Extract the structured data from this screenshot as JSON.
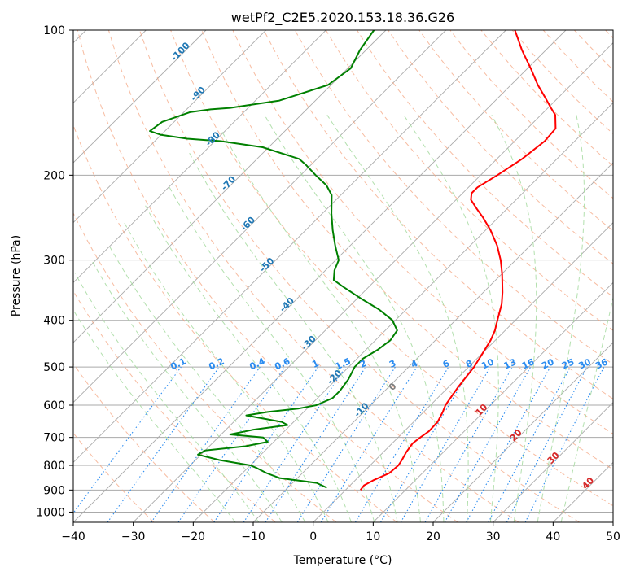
{
  "chart_data": {
    "type": "line",
    "title": "wetPf2_C2E5.2020.153.18.36.G26",
    "xlabel": "Temperature (°C)",
    "ylabel": "Pressure (hPa)",
    "xlim": [
      -40,
      50
    ],
    "ylim": [
      1050,
      100
    ],
    "y_scale": "log",
    "skew_deg": 45,
    "x_ticks": [
      -40,
      -30,
      -20,
      -10,
      0,
      10,
      20,
      30,
      40,
      50
    ],
    "y_ticks": [
      100,
      200,
      300,
      400,
      500,
      600,
      700,
      800,
      900,
      1000
    ],
    "grid": true,
    "colors": {
      "temperature": "#ff0000",
      "dewpoint": "#008000",
      "isotherm": "#aaaaaa",
      "dry_adiabat": "#f4a582",
      "moist_adiabat": "#a6dba0",
      "mixing_ratio": "#2b8cf0",
      "theta_label": "#1f77b4",
      "red_label": "#d62728"
    },
    "series": [
      {
        "name": "Temperature",
        "points": [
          [
            900,
            2.5
          ],
          [
            880,
            2.3
          ],
          [
            860,
            3.0
          ],
          [
            850,
            3.5
          ],
          [
            830,
            4.5
          ],
          [
            800,
            4.7
          ],
          [
            780,
            4.4
          ],
          [
            750,
            3.8
          ],
          [
            720,
            3.4
          ],
          [
            700,
            3.7
          ],
          [
            680,
            4.1
          ],
          [
            650,
            4.0
          ],
          [
            620,
            3.2
          ],
          [
            600,
            2.5
          ],
          [
            550,
            1.6
          ],
          [
            500,
            0.9
          ],
          [
            470,
            0.1
          ],
          [
            440,
            -0.8
          ],
          [
            420,
            -1.7
          ],
          [
            400,
            -3.0
          ],
          [
            370,
            -5.0
          ],
          [
            350,
            -6.8
          ],
          [
            320,
            -10.0
          ],
          [
            300,
            -12.5
          ],
          [
            280,
            -15.5
          ],
          [
            260,
            -19.2
          ],
          [
            245,
            -22.5
          ],
          [
            235,
            -25.0
          ],
          [
            225,
            -27.5
          ],
          [
            218,
            -28.5
          ],
          [
            212,
            -28.5
          ],
          [
            200,
            -27.2
          ],
          [
            185,
            -25.8
          ],
          [
            170,
            -25.0
          ],
          [
            160,
            -25.3
          ],
          [
            150,
            -27.6
          ],
          [
            145,
            -29.5
          ],
          [
            138,
            -32.2
          ],
          [
            130,
            -35.5
          ],
          [
            120,
            -39.5
          ],
          [
            110,
            -44.0
          ],
          [
            100,
            -48.5
          ]
        ]
      },
      {
        "name": "Dewpoint",
        "points": [
          [
            890,
            -3.5
          ],
          [
            870,
            -6.0
          ],
          [
            850,
            -13.0
          ],
          [
            830,
            -16.0
          ],
          [
            810,
            -18.5
          ],
          [
            800,
            -20.0
          ],
          [
            780,
            -26.0
          ],
          [
            760,
            -30.5
          ],
          [
            745,
            -30.0
          ],
          [
            730,
            -24.0
          ],
          [
            715,
            -21.0
          ],
          [
            700,
            -22.5
          ],
          [
            690,
            -28.5
          ],
          [
            675,
            -25.5
          ],
          [
            660,
            -20.5
          ],
          [
            650,
            -22.0
          ],
          [
            640,
            -25.5
          ],
          [
            630,
            -29.0
          ],
          [
            620,
            -26.0
          ],
          [
            610,
            -21.5
          ],
          [
            600,
            -19.0
          ],
          [
            580,
            -17.5
          ],
          [
            560,
            -17.5
          ],
          [
            530,
            -18.0
          ],
          [
            500,
            -19.0
          ],
          [
            480,
            -19.0
          ],
          [
            460,
            -18.0
          ],
          [
            440,
            -17.5
          ],
          [
            420,
            -18.0
          ],
          [
            400,
            -20.5
          ],
          [
            380,
            -24.5
          ],
          [
            360,
            -29.5
          ],
          [
            340,
            -34.5
          ],
          [
            330,
            -37.0
          ],
          [
            315,
            -38.5
          ],
          [
            300,
            -39.5
          ],
          [
            280,
            -42.5
          ],
          [
            260,
            -45.5
          ],
          [
            240,
            -48.5
          ],
          [
            220,
            -51.5
          ],
          [
            210,
            -54.0
          ],
          [
            200,
            -57.5
          ],
          [
            190,
            -61.0
          ],
          [
            185,
            -63.0
          ],
          [
            175,
            -71.0
          ],
          [
            170,
            -79.0
          ],
          [
            168,
            -85.0
          ],
          [
            165,
            -90.0
          ],
          [
            162,
            -92.5
          ],
          [
            155,
            -92.0
          ],
          [
            148,
            -89.0
          ],
          [
            146,
            -86.0
          ],
          [
            145,
            -83.0
          ],
          [
            140,
            -76.0
          ],
          [
            130,
            -70.5
          ],
          [
            120,
            -69.5
          ],
          [
            110,
            -71.0
          ],
          [
            100,
            -72.0
          ]
        ]
      }
    ],
    "dry_adiabat_labels": [
      "-100",
      "-90",
      "-80",
      "-70",
      "-60",
      "-50",
      "-40",
      "-30",
      "-20",
      "-10"
    ],
    "mixing_ratio_labels": [
      "0.1",
      "0.2",
      "0.4",
      "0.6",
      "1",
      "1.5",
      "2",
      "3",
      "4",
      "6",
      "8",
      "10",
      "13",
      "16",
      "20",
      "25",
      "30",
      "36"
    ],
    "moist_labels": [
      "0",
      "10",
      "20",
      "30",
      "40"
    ]
  }
}
